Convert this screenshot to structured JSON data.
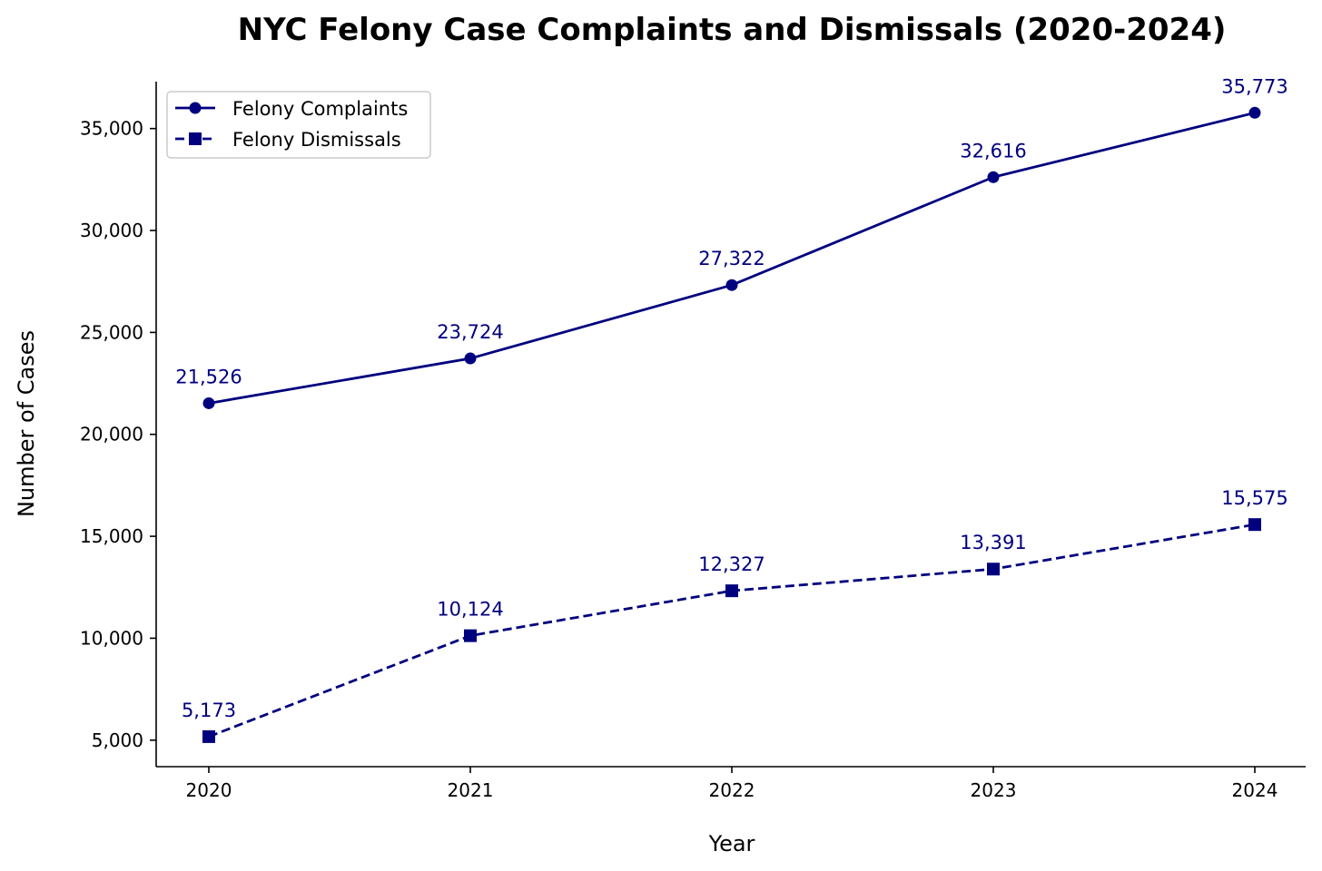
{
  "chart_data": {
    "type": "line",
    "title": "NYC Felony Case Complaints and Dismissals (2020-2024)",
    "xlabel": "Year",
    "ylabel": "Number of Cases",
    "categories": [
      "2020",
      "2021",
      "2022",
      "2023",
      "2024"
    ],
    "ylim": [
      3700,
      37300
    ],
    "yticks": [
      5000,
      10000,
      15000,
      20000,
      25000,
      30000,
      35000
    ],
    "ytick_labels": [
      "5,000",
      "10,000",
      "15,000",
      "20,000",
      "25,000",
      "30,000",
      "35,000"
    ],
    "grid": false,
    "legend_position": "top-left",
    "series": [
      {
        "name": "Felony Complaints",
        "marker": "circle",
        "line_style": "solid",
        "color": "#00007f",
        "values": [
          21526,
          23724,
          27322,
          32616,
          35773
        ],
        "labels": [
          "21,526",
          "23,724",
          "27,322",
          "32,616",
          "35,773"
        ]
      },
      {
        "name": "Felony Dismissals",
        "marker": "square",
        "line_style": "dashed",
        "color": "#00007f",
        "values": [
          5173,
          10124,
          12327,
          13391,
          15575
        ],
        "labels": [
          "5,173",
          "10,124",
          "12,327",
          "13,391",
          "15,575"
        ]
      }
    ]
  }
}
